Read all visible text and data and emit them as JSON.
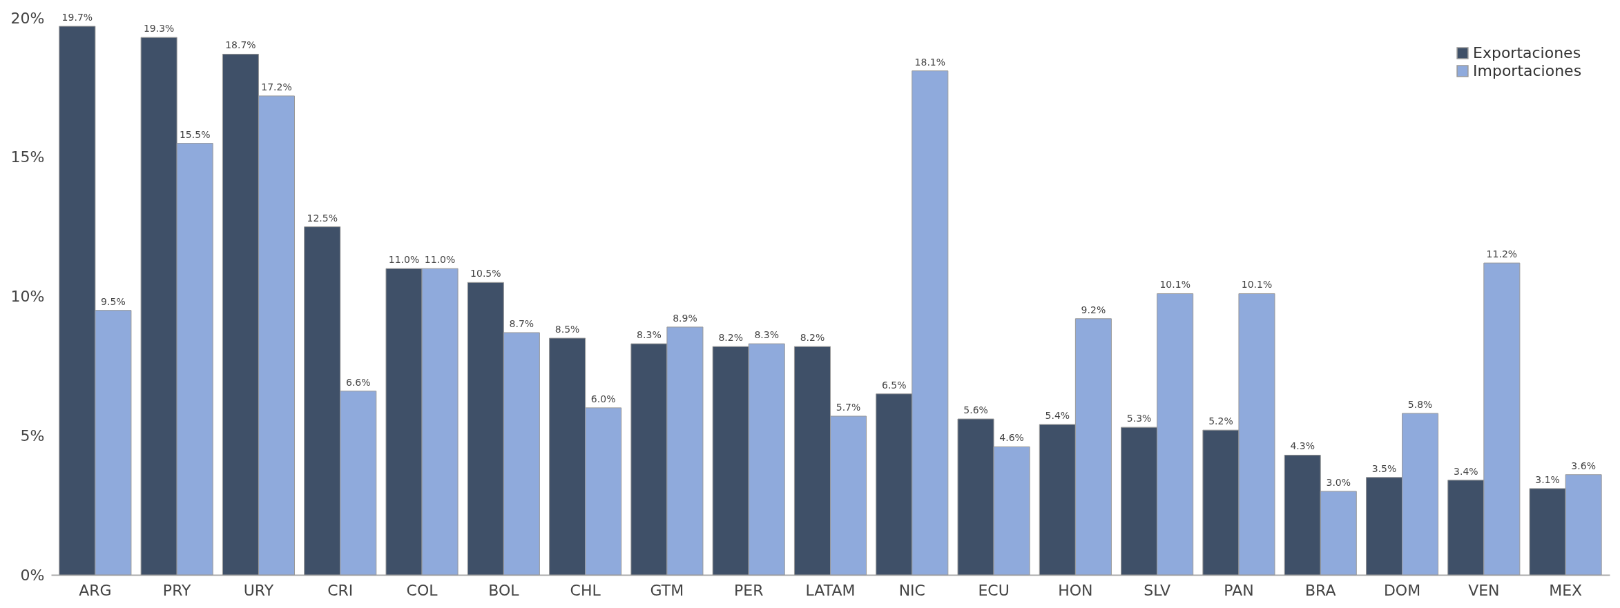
{
  "chart_data": {
    "type": "bar",
    "categories": [
      "ARG",
      "PRY",
      "URY",
      "CRI",
      "COL",
      "BOL",
      "CHL",
      "GTM",
      "PER",
      "LATAM",
      "NIC",
      "ECU",
      "HON",
      "SLV",
      "PAN",
      "BRA",
      "DOM",
      "VEN",
      "MEX"
    ],
    "series": [
      {
        "name": "Exportaciones",
        "color": "#3f5068",
        "values": [
          19.7,
          19.3,
          18.7,
          12.5,
          11.0,
          10.5,
          8.5,
          8.3,
          8.2,
          8.2,
          6.5,
          5.6,
          5.4,
          5.3,
          5.2,
          4.3,
          3.5,
          3.4,
          3.1
        ],
        "value_labels": [
          "19.7%",
          "19.3%",
          "18.7%",
          "12.5%",
          "11.0%",
          "10.5%",
          "8.5%",
          "8.3%",
          "8.2%",
          "8.2%",
          "6.5%",
          "5.6%",
          "5.4%",
          "5.3%",
          "5.2%",
          "4.3%",
          "3.5%",
          "3.4%",
          "3.1%"
        ]
      },
      {
        "name": "Importaciones",
        "color": "#8faadc",
        "values": [
          9.5,
          15.5,
          17.2,
          6.6,
          11.0,
          8.7,
          6.0,
          8.9,
          8.3,
          5.7,
          18.1,
          4.6,
          9.2,
          10.1,
          10.1,
          3.0,
          5.8,
          11.2,
          3.6
        ],
        "value_labels": [
          "9.5%",
          "15.5%",
          "17.2%",
          "6.6%",
          "11.0%",
          "8.7%",
          "6.0%",
          "8.9%",
          "8.3%",
          "5.7%",
          "18.1%",
          "4.6%",
          "9.2%",
          "10.1%",
          "10.1%",
          "3.0%",
          "5.8%",
          "11.2%",
          "3.6%"
        ]
      }
    ],
    "ylim": [
      0,
      20
    ],
    "yticks": [
      {
        "value": 0,
        "label": "0%"
      },
      {
        "value": 5,
        "label": "5%"
      },
      {
        "value": 10,
        "label": "10%"
      },
      {
        "value": 15,
        "label": "15%"
      },
      {
        "value": 20,
        "label": "20%"
      }
    ],
    "grid": false,
    "legend": "top right"
  }
}
